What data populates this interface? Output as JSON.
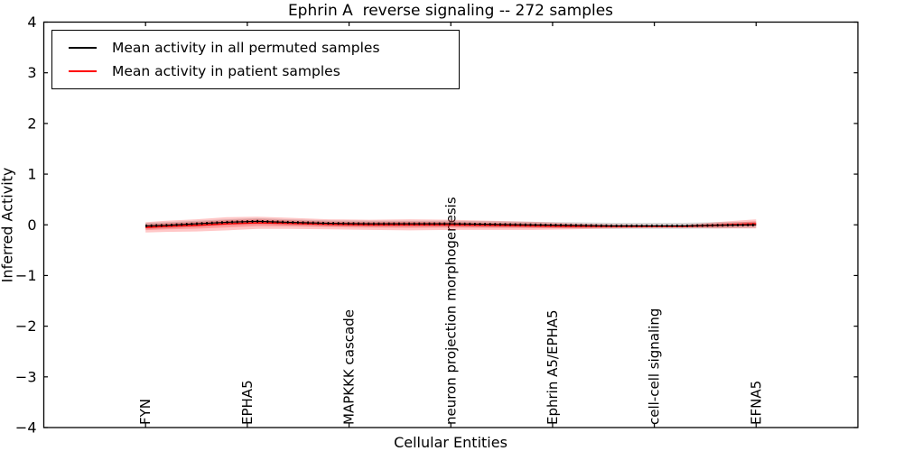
{
  "chart_data": {
    "type": "line",
    "title": "Ephrin A  reverse signaling -- 272 samples",
    "xlabel": "Cellular Entities",
    "ylabel": "Inferred Activity",
    "ylim": [
      -4,
      4
    ],
    "ytick_values": [
      4,
      3,
      2,
      1,
      0,
      -1,
      -2,
      -3,
      -4
    ],
    "ytick_labels": [
      "4",
      "3",
      "2",
      "1",
      "0",
      "−1",
      "−2",
      "−3",
      "−4"
    ],
    "categories": [
      "FYN",
      "EPHA5",
      "MAPKKK cascade",
      "neuron projection morphogenesis",
      "Ephrin A5/EPHA5",
      "cell-cell signaling",
      "EFNA5"
    ],
    "category_tick_positions": [
      1,
      2,
      3,
      4,
      5,
      6,
      7
    ],
    "x_axis_range": [
      0,
      8
    ],
    "grid": false,
    "legend_position": "upper left",
    "legend": [
      {
        "label": "Mean activity in all permuted samples",
        "color": "#000000"
      },
      {
        "label": "Mean activity in patient samples",
        "color": "#ff0000"
      }
    ],
    "x": [
      1.0,
      1.2,
      1.5,
      1.8,
      2.1,
      2.4,
      2.8,
      3.2,
      3.6,
      4.0,
      4.4,
      4.8,
      5.2,
      5.6,
      6.0,
      6.3,
      6.6,
      7.0
    ],
    "series": [
      {
        "name": "Mean activity in all permuted samples",
        "color": "#000000",
        "style": "solid line with dense small square markers",
        "values": [
          -0.02,
          -0.01,
          0.02,
          0.05,
          0.07,
          0.05,
          0.03,
          0.02,
          0.02,
          0.02,
          0.01,
          0.0,
          -0.01,
          -0.02,
          -0.02,
          -0.02,
          -0.01,
          0.0
        ]
      },
      {
        "name": "Mean activity in patient samples",
        "color": "#ff0000",
        "style": "solid line with translucent red band",
        "values": [
          -0.05,
          -0.03,
          -0.01,
          0.02,
          0.04,
          0.03,
          0.01,
          0.0,
          0.0,
          0.0,
          -0.01,
          -0.02,
          -0.03,
          -0.03,
          -0.03,
          -0.03,
          -0.01,
          0.02
        ]
      }
    ],
    "patient_band_halfwidth": [
      0.1,
      0.11,
      0.12,
      0.13,
      0.12,
      0.11,
      0.1,
      0.1,
      0.11,
      0.1,
      0.09,
      0.08,
      0.06,
      0.04,
      0.03,
      0.03,
      0.06,
      0.09
    ],
    "permuted_band_halfwidth": 0.06,
    "band_color": "#ff0000",
    "band_alpha": 0.22,
    "permuted_band_color": "#888888",
    "permuted_band_alpha": 0.3
  }
}
